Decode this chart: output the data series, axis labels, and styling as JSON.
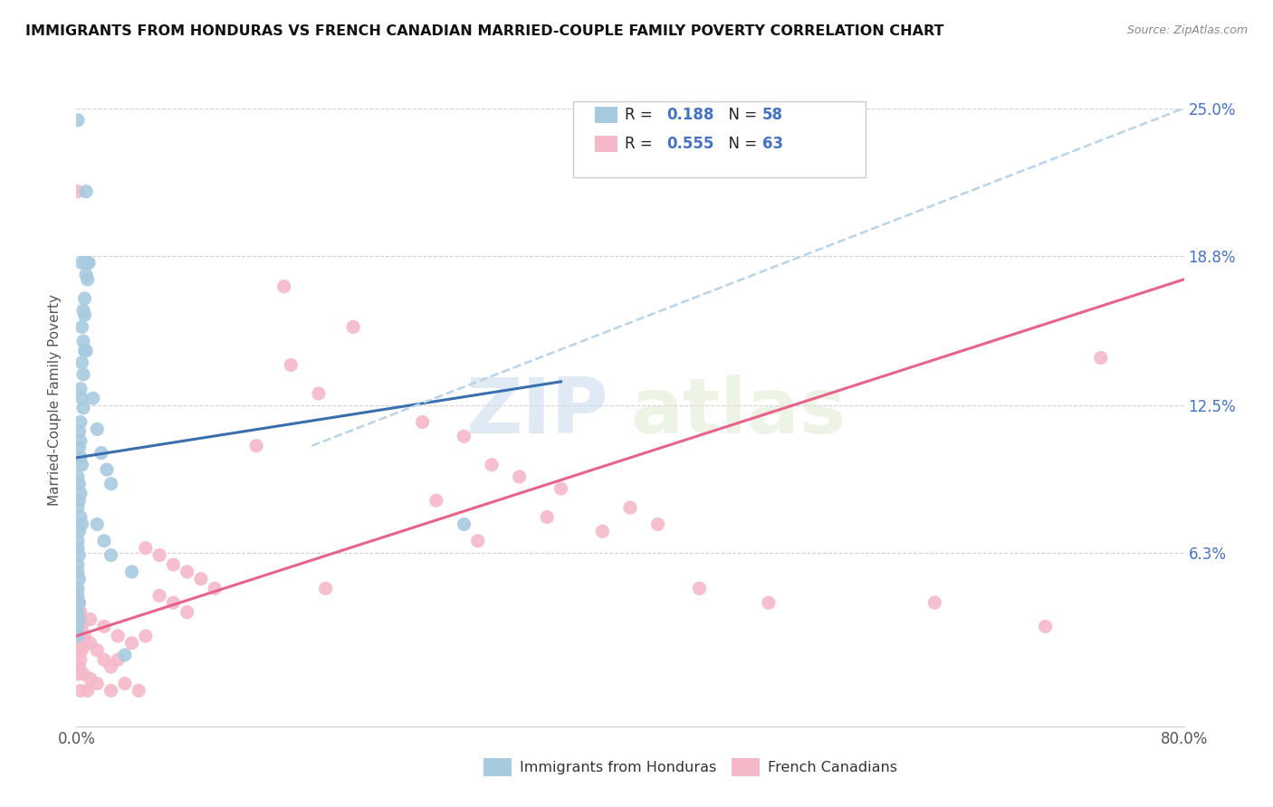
{
  "title": "IMMIGRANTS FROM HONDURAS VS FRENCH CANADIAN MARRIED-COUPLE FAMILY POVERTY CORRELATION CHART",
  "source": "Source: ZipAtlas.com",
  "ylabel": "Married-Couple Family Poverty",
  "xlim": [
    0.0,
    0.8
  ],
  "ylim": [
    -0.01,
    0.265
  ],
  "yticks": [
    0.063,
    0.125,
    0.188,
    0.25
  ],
  "right_yticklabels": [
    "6.3%",
    "12.5%",
    "18.8%",
    "25.0%"
  ],
  "legend_r1_val": "0.188",
  "legend_n1_val": "58",
  "legend_r2_val": "0.555",
  "legend_n2_val": "63",
  "blue_color": "#a8cadf",
  "pink_color": "#f4b8c8",
  "blue_line_color": "#3a6fad",
  "pink_line_color": "#e8638c",
  "dashed_line_color": "#b8d4e8",
  "watermark_zip": "ZIP",
  "watermark_atlas": "atlas",
  "scatter_blue": [
    [
      0.001,
      0.245
    ],
    [
      0.007,
      0.215
    ],
    [
      0.004,
      0.185
    ],
    [
      0.007,
      0.185
    ],
    [
      0.008,
      0.185
    ],
    [
      0.009,
      0.185
    ],
    [
      0.007,
      0.18
    ],
    [
      0.008,
      0.178
    ],
    [
      0.006,
      0.17
    ],
    [
      0.005,
      0.165
    ],
    [
      0.006,
      0.163
    ],
    [
      0.004,
      0.158
    ],
    [
      0.005,
      0.152
    ],
    [
      0.006,
      0.148
    ],
    [
      0.007,
      0.148
    ],
    [
      0.004,
      0.143
    ],
    [
      0.005,
      0.138
    ],
    [
      0.003,
      0.132
    ],
    [
      0.004,
      0.128
    ],
    [
      0.005,
      0.124
    ],
    [
      0.003,
      0.118
    ],
    [
      0.002,
      0.114
    ],
    [
      0.003,
      0.11
    ],
    [
      0.002,
      0.107
    ],
    [
      0.003,
      0.103
    ],
    [
      0.004,
      0.1
    ],
    [
      0.001,
      0.095
    ],
    [
      0.002,
      0.092
    ],
    [
      0.003,
      0.088
    ],
    [
      0.002,
      0.085
    ],
    [
      0.001,
      0.082
    ],
    [
      0.003,
      0.078
    ],
    [
      0.004,
      0.075
    ],
    [
      0.002,
      0.072
    ],
    [
      0.001,
      0.068
    ],
    [
      0.001,
      0.065
    ],
    [
      0.002,
      0.062
    ],
    [
      0.001,
      0.058
    ],
    [
      0.001,
      0.055
    ],
    [
      0.002,
      0.052
    ],
    [
      0.001,
      0.048
    ],
    [
      0.001,
      0.045
    ],
    [
      0.002,
      0.042
    ],
    [
      0.001,
      0.038
    ],
    [
      0.002,
      0.035
    ],
    [
      0.001,
      0.032
    ],
    [
      0.001,
      0.028
    ],
    [
      0.012,
      0.128
    ],
    [
      0.015,
      0.115
    ],
    [
      0.018,
      0.105
    ],
    [
      0.022,
      0.098
    ],
    [
      0.025,
      0.092
    ],
    [
      0.015,
      0.075
    ],
    [
      0.02,
      0.068
    ],
    [
      0.025,
      0.062
    ],
    [
      0.28,
      0.075
    ],
    [
      0.04,
      0.055
    ],
    [
      0.035,
      0.02
    ]
  ],
  "scatter_pink": [
    [
      0.001,
      0.215
    ],
    [
      0.15,
      0.175
    ],
    [
      0.2,
      0.158
    ],
    [
      0.155,
      0.142
    ],
    [
      0.175,
      0.13
    ],
    [
      0.25,
      0.118
    ],
    [
      0.28,
      0.112
    ],
    [
      0.13,
      0.108
    ],
    [
      0.3,
      0.1
    ],
    [
      0.32,
      0.095
    ],
    [
      0.35,
      0.09
    ],
    [
      0.26,
      0.085
    ],
    [
      0.4,
      0.082
    ],
    [
      0.34,
      0.078
    ],
    [
      0.42,
      0.075
    ],
    [
      0.38,
      0.072
    ],
    [
      0.29,
      0.068
    ],
    [
      0.05,
      0.065
    ],
    [
      0.06,
      0.062
    ],
    [
      0.07,
      0.058
    ],
    [
      0.08,
      0.055
    ],
    [
      0.09,
      0.052
    ],
    [
      0.1,
      0.048
    ],
    [
      0.06,
      0.045
    ],
    [
      0.07,
      0.042
    ],
    [
      0.08,
      0.038
    ],
    [
      0.01,
      0.035
    ],
    [
      0.02,
      0.032
    ],
    [
      0.03,
      0.028
    ],
    [
      0.01,
      0.025
    ],
    [
      0.015,
      0.022
    ],
    [
      0.02,
      0.018
    ],
    [
      0.025,
      0.015
    ],
    [
      0.005,
      0.012
    ],
    [
      0.01,
      0.01
    ],
    [
      0.015,
      0.008
    ],
    [
      0.003,
      0.005
    ],
    [
      0.001,
      0.038
    ],
    [
      0.002,
      0.042
    ],
    [
      0.003,
      0.038
    ],
    [
      0.004,
      0.032
    ],
    [
      0.003,
      0.028
    ],
    [
      0.002,
      0.025
    ],
    [
      0.001,
      0.022
    ],
    [
      0.004,
      0.022
    ],
    [
      0.005,
      0.025
    ],
    [
      0.006,
      0.028
    ],
    [
      0.003,
      0.018
    ],
    [
      0.002,
      0.015
    ],
    [
      0.001,
      0.012
    ],
    [
      0.62,
      0.042
    ],
    [
      0.7,
      0.032
    ],
    [
      0.74,
      0.145
    ],
    [
      0.18,
      0.048
    ],
    [
      0.45,
      0.048
    ],
    [
      0.5,
      0.042
    ],
    [
      0.035,
      0.008
    ],
    [
      0.045,
      0.005
    ],
    [
      0.008,
      0.005
    ],
    [
      0.04,
      0.025
    ],
    [
      0.05,
      0.028
    ],
    [
      0.03,
      0.018
    ],
    [
      0.025,
      0.005
    ]
  ],
  "blue_trend_x": [
    0.0,
    0.35
  ],
  "blue_trend_y": [
    0.103,
    0.135
  ],
  "pink_trend_x": [
    0.0,
    0.8
  ],
  "pink_trend_y": [
    0.028,
    0.178
  ],
  "dashed_trend_x": [
    0.17,
    0.8
  ],
  "dashed_trend_y": [
    0.108,
    0.25
  ]
}
